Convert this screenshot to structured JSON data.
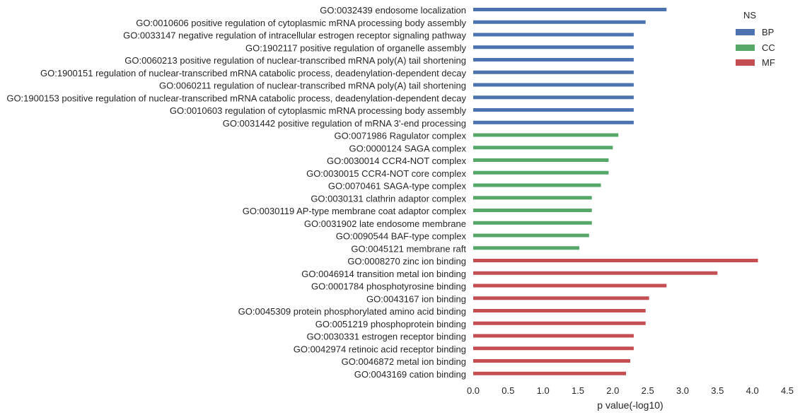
{
  "chart_data": {
    "type": "bar",
    "orientation": "horizontal",
    "xlabel": "p value(-log10)",
    "ylabel": "",
    "xlim": [
      0,
      4.5
    ],
    "xticks": [
      "0.0",
      "0.5",
      "1.0",
      "1.5",
      "2.0",
      "2.5",
      "3.0",
      "3.5",
      "4.0",
      "4.5"
    ],
    "grid": false,
    "legend": {
      "title": "NS",
      "position": "top-right",
      "entries": [
        {
          "name": "BP",
          "color": "#4c72b0"
        },
        {
          "name": "CC",
          "color": "#55a868"
        },
        {
          "name": "MF",
          "color": "#c44e52"
        }
      ]
    },
    "bars": [
      {
        "label": "GO:0032439 endosome localization",
        "value": 2.77,
        "ns": "BP"
      },
      {
        "label": "GO:0010606 positive regulation of cytoplasmic mRNA processing body assembly",
        "value": 2.47,
        "ns": "BP"
      },
      {
        "label": "GO:0033147 negative regulation of intracellular estrogen receptor signaling pathway",
        "value": 2.3,
        "ns": "BP"
      },
      {
        "label": "GO:1902117 positive regulation of organelle assembly",
        "value": 2.3,
        "ns": "BP"
      },
      {
        "label": "GO:0060213 positive regulation of nuclear-transcribed mRNA poly(A) tail shortening",
        "value": 2.3,
        "ns": "BP"
      },
      {
        "label": "GO:1900151 regulation of nuclear-transcribed mRNA catabolic process, deadenylation-dependent decay",
        "value": 2.3,
        "ns": "BP"
      },
      {
        "label": "GO:0060211 regulation of nuclear-transcribed mRNA poly(A) tail shortening",
        "value": 2.3,
        "ns": "BP"
      },
      {
        "label": "GO:1900153 positive regulation of nuclear-transcribed mRNA catabolic process, deadenylation-dependent decay",
        "value": 2.3,
        "ns": "BP"
      },
      {
        "label": "GO:0010603 regulation of cytoplasmic mRNA processing body assembly",
        "value": 2.3,
        "ns": "BP"
      },
      {
        "label": "GO:0031442 positive regulation of mRNA 3'-end processing",
        "value": 2.3,
        "ns": "BP"
      },
      {
        "label": "GO:0071986 Ragulator complex",
        "value": 2.08,
        "ns": "CC"
      },
      {
        "label": "GO:0000124 SAGA complex",
        "value": 2.0,
        "ns": "CC"
      },
      {
        "label": "GO:0030014 CCR4-NOT complex",
        "value": 1.94,
        "ns": "CC"
      },
      {
        "label": "GO:0030015 CCR4-NOT core complex",
        "value": 1.94,
        "ns": "CC"
      },
      {
        "label": "GO:0070461 SAGA-type complex",
        "value": 1.83,
        "ns": "CC"
      },
      {
        "label": "GO:0030131 clathrin adaptor complex",
        "value": 1.7,
        "ns": "CC"
      },
      {
        "label": "GO:0030119 AP-type membrane coat adaptor complex",
        "value": 1.7,
        "ns": "CC"
      },
      {
        "label": "GO:0031902 late endosome membrane",
        "value": 1.7,
        "ns": "CC"
      },
      {
        "label": "GO:0090544 BAF-type complex",
        "value": 1.66,
        "ns": "CC"
      },
      {
        "label": "GO:0045121 membrane raft",
        "value": 1.52,
        "ns": "CC"
      },
      {
        "label": "GO:0008270 zinc ion binding",
        "value": 4.08,
        "ns": "MF"
      },
      {
        "label": "GO:0046914 transition metal ion binding",
        "value": 3.5,
        "ns": "MF"
      },
      {
        "label": "GO:0001784 phosphotyrosine binding",
        "value": 2.77,
        "ns": "MF"
      },
      {
        "label": "GO:0043167 ion binding",
        "value": 2.52,
        "ns": "MF"
      },
      {
        "label": "GO:0045309 protein phosphorylated amino acid binding",
        "value": 2.47,
        "ns": "MF"
      },
      {
        "label": "GO:0051219 phosphoprotein binding",
        "value": 2.47,
        "ns": "MF"
      },
      {
        "label": "GO:0030331 estrogen receptor binding",
        "value": 2.3,
        "ns": "MF"
      },
      {
        "label": "GO:0042974 retinoic acid receptor binding",
        "value": 2.3,
        "ns": "MF"
      },
      {
        "label": "GO:0046872 metal ion binding",
        "value": 2.25,
        "ns": "MF"
      },
      {
        "label": "GO:0043169 cation binding",
        "value": 2.19,
        "ns": "MF"
      }
    ]
  }
}
